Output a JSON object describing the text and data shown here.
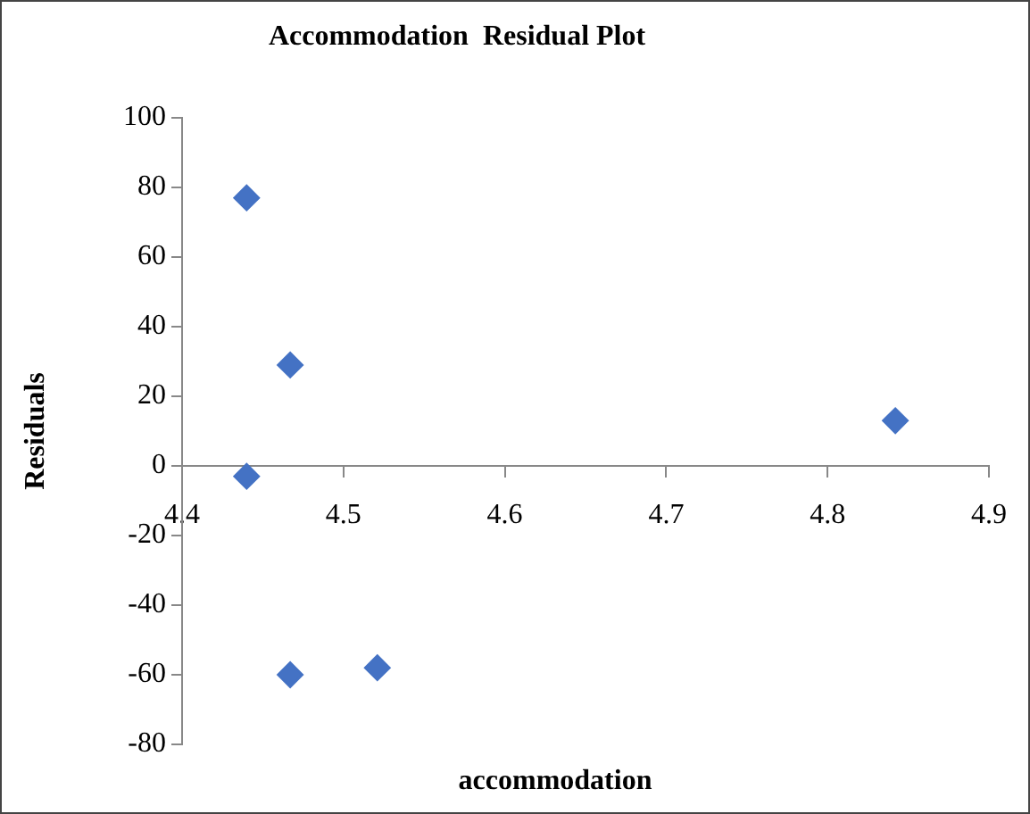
{
  "chart_data": {
    "type": "scatter",
    "title": "Accommodation  Residual Plot",
    "xlabel": "accommodation",
    "ylabel": "Residuals",
    "x": [
      4.44,
      4.467,
      4.44,
      4.467,
      4.521,
      4.842
    ],
    "series": [
      {
        "color": "#4472c4",
        "values": [
          77,
          29,
          -3,
          -60,
          -58,
          13
        ]
      }
    ],
    "xlim": [
      4.4,
      4.9
    ],
    "xticks": [
      4.4,
      4.5,
      4.6,
      4.7,
      4.8,
      4.9
    ],
    "ylim": [
      -80,
      100
    ],
    "yticks": [
      -80,
      -60,
      -40,
      -20,
      0,
      20,
      40,
      60,
      80,
      100
    ],
    "marker": "diamond",
    "grid": false,
    "legend": false
  }
}
